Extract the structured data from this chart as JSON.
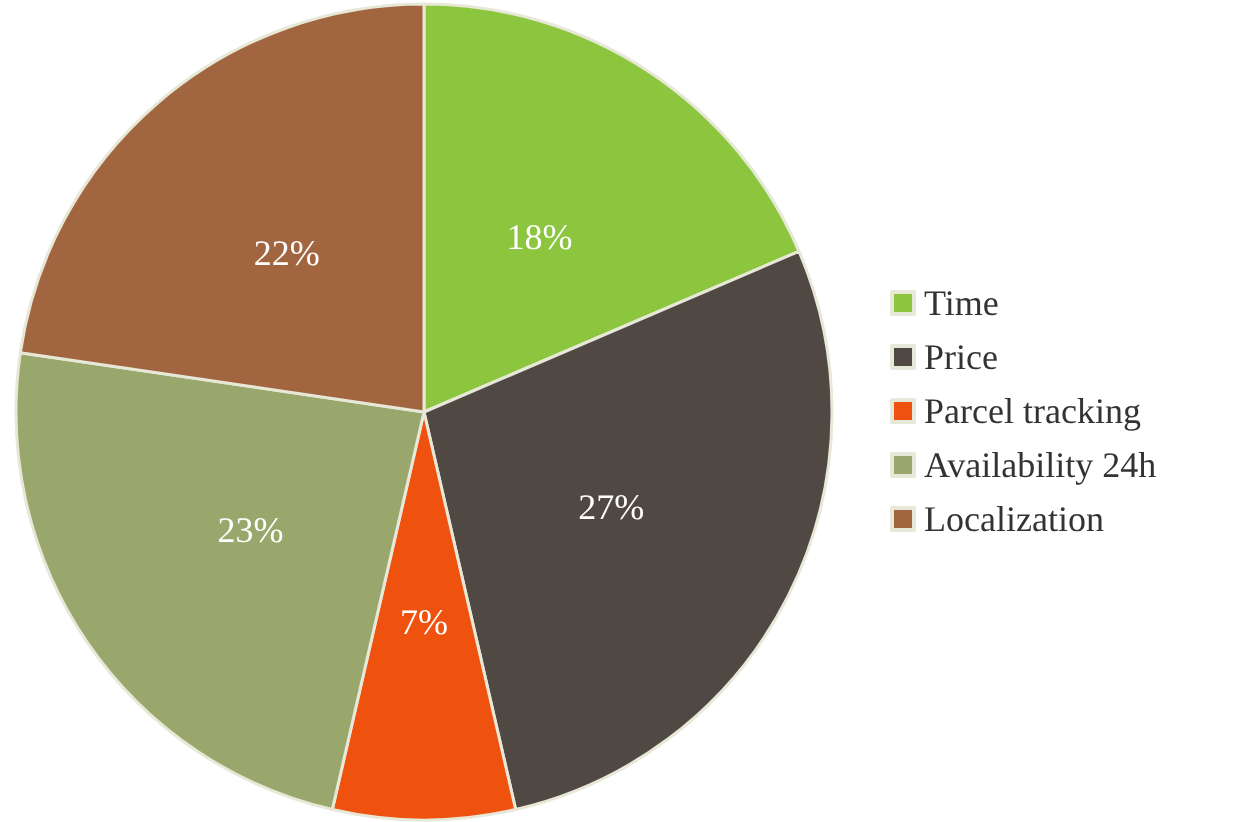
{
  "chart_data": {
    "type": "pie",
    "categories": [
      "Time",
      "Price",
      "Parcel tracking",
      "Availability 24h",
      "Localization"
    ],
    "values": [
      18,
      27,
      7,
      23,
      22
    ],
    "value_labels": [
      "18%",
      "27%",
      "7%",
      "23%",
      "22%"
    ],
    "colors": [
      "#8cc63e",
      "#4f4843",
      "#ef520f",
      "#9aa76c",
      "#a1663f"
    ],
    "legend": "right"
  }
}
